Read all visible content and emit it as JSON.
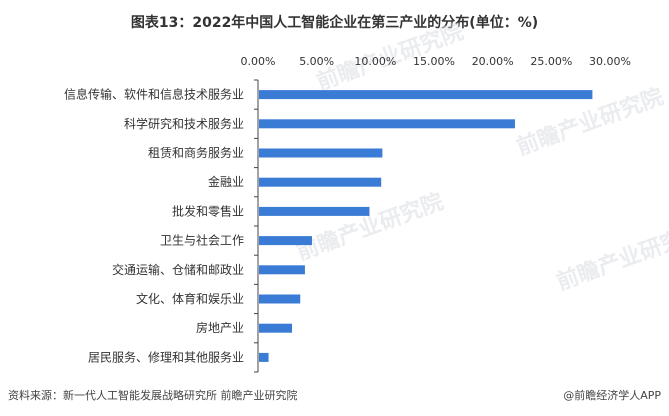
{
  "chart_data": {
    "type": "bar",
    "orientation": "horizontal",
    "title": "图表13：2022年中国人工智能企业在第三产业的分布(单位：%)",
    "categories": [
      "信息传输、软件和信息技术服务业",
      "科学研究和技术服务业",
      "租赁和商务服务业",
      "金融业",
      "批发和零售业",
      "卫生与社会工作",
      "交通运输、仓储和邮政业",
      "文化、体育和娱乐业",
      "房地产业",
      "居民服务、修理和其他服务业"
    ],
    "values": [
      28.5,
      21.9,
      10.6,
      10.5,
      9.5,
      4.6,
      4.0,
      3.6,
      2.9,
      0.9
    ],
    "xlim": [
      0,
      30
    ],
    "xticks": [
      0,
      5,
      10,
      15,
      20,
      25,
      30
    ],
    "xtick_labels": [
      "0.00%",
      "5.00%",
      "10.00%",
      "15.00%",
      "20.00%",
      "25.00%",
      "30.00%"
    ],
    "x_axis_position": "top",
    "bar_color": "#3a7bd5",
    "grid": false,
    "legend": "none"
  },
  "source": "资料来源：新一代人工智能发展战略研究所 前瞻产业研究院",
  "brand": "@前瞻经济学人APP",
  "watermark": "前瞻产业研究院"
}
